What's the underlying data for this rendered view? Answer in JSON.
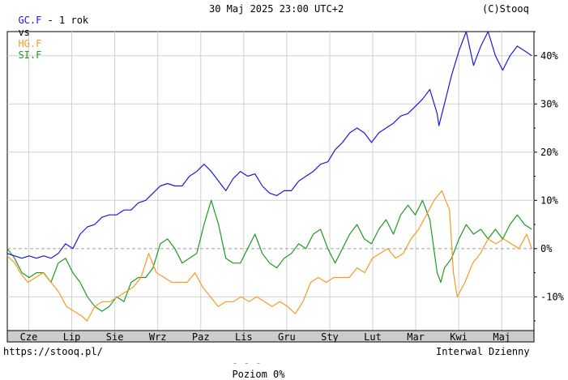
{
  "header": {
    "main_symbol": "GC.F",
    "period": " - 1 rok",
    "vs": "vs",
    "symbol_2": "HG.F",
    "symbol_3": "SI.F",
    "datetime": "30 Maj 2025 23:00 UTC+2",
    "copyright": "(C)Stooq"
  },
  "footer": {
    "url": "https://stooq.pl/",
    "baseline_label": "Poziom 0%",
    "interval": "Interwal Dzienny"
  },
  "colors": {
    "gold": "#1a1adc",
    "copper": "#f59a22",
    "silver": "#1f9a1f",
    "grid": "#d0d0d0",
    "baseline": "#a0a0a0",
    "axis_band": "#cccccc"
  },
  "chart_data": {
    "type": "line",
    "x_tick_labels": [
      "Cze",
      "Lip",
      "Sie",
      "Wrz",
      "Paz",
      "Lis",
      "Gru",
      "Sty",
      "Lut",
      "Mar",
      "Kwi",
      "Maj"
    ],
    "y_tick_labels": [
      "40%",
      "30%",
      "20%",
      "10%",
      "0%",
      "-10%"
    ],
    "y_ticks": [
      40,
      30,
      20,
      10,
      0,
      -10
    ],
    "ylim": [
      -17,
      45
    ],
    "x_range_months": [
      0,
      12.25
    ],
    "baseline": 0,
    "grid": true,
    "series": [
      {
        "name": "GC.F",
        "color": "#1a1adc",
        "points": [
          [
            0,
            -1
          ],
          [
            0.2,
            -1.5
          ],
          [
            0.4,
            -2
          ],
          [
            0.6,
            -1.5
          ],
          [
            0.8,
            -2
          ],
          [
            1.0,
            -1.5
          ],
          [
            1.2,
            -2
          ],
          [
            1.4,
            -1
          ],
          [
            1.6,
            1
          ],
          [
            1.8,
            0
          ],
          [
            2.0,
            3
          ],
          [
            2.2,
            4.5
          ],
          [
            2.4,
            5
          ],
          [
            2.6,
            6.5
          ],
          [
            2.8,
            7
          ],
          [
            3.0,
            7
          ],
          [
            3.2,
            8
          ],
          [
            3.4,
            8
          ],
          [
            3.6,
            9.5
          ],
          [
            3.8,
            10
          ],
          [
            4.0,
            11.5
          ],
          [
            4.2,
            13
          ],
          [
            4.4,
            13.5
          ],
          [
            4.6,
            13
          ],
          [
            4.8,
            13
          ],
          [
            5.0,
            15
          ],
          [
            5.2,
            16
          ],
          [
            5.4,
            17.5
          ],
          [
            5.6,
            16
          ],
          [
            5.8,
            14
          ],
          [
            6.0,
            12
          ],
          [
            6.2,
            14.5
          ],
          [
            6.4,
            16
          ],
          [
            6.6,
            15
          ],
          [
            6.8,
            15.5
          ],
          [
            7.0,
            13
          ],
          [
            7.2,
            11.5
          ],
          [
            7.4,
            11
          ],
          [
            7.6,
            12
          ],
          [
            7.8,
            12
          ],
          [
            8.0,
            14
          ],
          [
            8.2,
            15
          ],
          [
            8.4,
            16
          ],
          [
            8.6,
            17.5
          ],
          [
            8.8,
            18
          ],
          [
            9.0,
            20.5
          ],
          [
            9.2,
            22
          ],
          [
            9.4,
            24
          ],
          [
            9.6,
            25
          ],
          [
            9.8,
            24
          ],
          [
            10.0,
            22
          ],
          [
            10.2,
            24
          ],
          [
            10.4,
            25
          ],
          [
            10.6,
            26
          ],
          [
            10.8,
            27.5
          ],
          [
            11.0,
            28
          ],
          [
            11.2,
            29.5
          ],
          [
            11.4,
            31
          ],
          [
            11.6,
            33
          ],
          [
            11.8,
            28
          ],
          [
            11.85,
            25.5
          ],
          [
            12.0,
            30
          ],
          [
            12.2,
            36
          ],
          [
            12.4,
            41
          ],
          [
            12.6,
            45
          ],
          [
            12.8,
            38
          ],
          [
            13.0,
            42
          ],
          [
            13.2,
            45
          ],
          [
            13.4,
            40
          ],
          [
            13.6,
            37
          ],
          [
            13.8,
            40
          ],
          [
            14.0,
            42
          ],
          [
            14.2,
            41
          ],
          [
            14.4,
            40
          ]
        ]
      },
      {
        "name": "HG.F",
        "color": "#f59a22",
        "points": [
          [
            0,
            -1.5
          ],
          [
            0.3,
            -3
          ],
          [
            0.5,
            -5
          ],
          [
            0.8,
            -7
          ],
          [
            1.1,
            -6
          ],
          [
            1.4,
            -5
          ],
          [
            1.7,
            -7
          ],
          [
            2.0,
            -9
          ],
          [
            2.3,
            -12
          ],
          [
            2.6,
            -13
          ],
          [
            2.9,
            -14
          ],
          [
            3.1,
            -15
          ],
          [
            3.4,
            -12
          ],
          [
            3.7,
            -11
          ],
          [
            4.0,
            -11
          ],
          [
            4.3,
            -10
          ],
          [
            4.6,
            -9
          ],
          [
            4.9,
            -8
          ],
          [
            5.2,
            -6
          ],
          [
            5.5,
            -1
          ],
          [
            5.8,
            -5
          ],
          [
            6.1,
            -6
          ],
          [
            6.4,
            -7
          ],
          [
            6.7,
            -7
          ],
          [
            7.0,
            -7
          ],
          [
            7.3,
            -5
          ],
          [
            7.6,
            -8
          ],
          [
            7.9,
            -10
          ],
          [
            8.2,
            -12
          ],
          [
            8.5,
            -11
          ],
          [
            8.8,
            -11
          ],
          [
            9.1,
            -10
          ],
          [
            9.4,
            -11
          ],
          [
            9.7,
            -10
          ],
          [
            10.0,
            -11
          ],
          [
            10.3,
            -12
          ],
          [
            10.6,
            -11
          ],
          [
            10.9,
            -12
          ],
          [
            11.2,
            -13.5
          ],
          [
            11.5,
            -11
          ],
          [
            11.8,
            -7
          ],
          [
            12.1,
            -6
          ],
          [
            12.4,
            -7
          ],
          [
            12.7,
            -6
          ],
          [
            13.0,
            -6
          ],
          [
            13.3,
            -6
          ],
          [
            13.6,
            -4
          ],
          [
            13.9,
            -5
          ],
          [
            14.2,
            -2
          ],
          [
            14.5,
            -1
          ],
          [
            14.8,
            0
          ],
          [
            15.1,
            -2
          ],
          [
            15.4,
            -1
          ],
          [
            15.7,
            2
          ],
          [
            16.0,
            4
          ],
          [
            16.3,
            7
          ],
          [
            16.6,
            10
          ],
          [
            16.9,
            12
          ],
          [
            17.2,
            8
          ],
          [
            17.35,
            -5
          ],
          [
            17.5,
            -10
          ],
          [
            17.8,
            -7
          ],
          [
            18.1,
            -3
          ],
          [
            18.4,
            -1
          ],
          [
            18.7,
            2
          ],
          [
            19.0,
            1
          ],
          [
            19.3,
            2
          ],
          [
            19.6,
            1
          ],
          [
            19.9,
            0
          ],
          [
            20.2,
            3
          ],
          [
            20.4,
            0
          ]
        ]
      },
      {
        "name": "SI.F",
        "color": "#1f9a1f",
        "points": [
          [
            0,
            0
          ],
          [
            0.2,
            -2
          ],
          [
            0.4,
            -5
          ],
          [
            0.6,
            -6
          ],
          [
            0.8,
            -5
          ],
          [
            1.0,
            -5
          ],
          [
            1.2,
            -7
          ],
          [
            1.4,
            -3
          ],
          [
            1.6,
            -2
          ],
          [
            1.8,
            -5
          ],
          [
            2.0,
            -7
          ],
          [
            2.2,
            -10
          ],
          [
            2.4,
            -12
          ],
          [
            2.6,
            -13
          ],
          [
            2.8,
            -12
          ],
          [
            3.0,
            -10
          ],
          [
            3.2,
            -11
          ],
          [
            3.4,
            -7
          ],
          [
            3.6,
            -6
          ],
          [
            3.8,
            -6
          ],
          [
            4.0,
            -4
          ],
          [
            4.2,
            1
          ],
          [
            4.4,
            2
          ],
          [
            4.6,
            0
          ],
          [
            4.8,
            -3
          ],
          [
            5.0,
            -2
          ],
          [
            5.2,
            -1
          ],
          [
            5.4,
            5
          ],
          [
            5.6,
            10
          ],
          [
            5.8,
            5
          ],
          [
            6.0,
            -2
          ],
          [
            6.2,
            -3
          ],
          [
            6.4,
            -3
          ],
          [
            6.6,
            0
          ],
          [
            6.8,
            3
          ],
          [
            7.0,
            -1
          ],
          [
            7.2,
            -3
          ],
          [
            7.4,
            -4
          ],
          [
            7.6,
            -2
          ],
          [
            7.8,
            -1
          ],
          [
            8.0,
            1
          ],
          [
            8.2,
            0
          ],
          [
            8.4,
            3
          ],
          [
            8.6,
            4
          ],
          [
            8.8,
            0
          ],
          [
            9.0,
            -3
          ],
          [
            9.2,
            0
          ],
          [
            9.4,
            3
          ],
          [
            9.6,
            5
          ],
          [
            9.8,
            2
          ],
          [
            10.0,
            1
          ],
          [
            10.2,
            4
          ],
          [
            10.4,
            6
          ],
          [
            10.6,
            3
          ],
          [
            10.8,
            7
          ],
          [
            11.0,
            9
          ],
          [
            11.2,
            7
          ],
          [
            11.4,
            10
          ],
          [
            11.6,
            6
          ],
          [
            11.8,
            -5
          ],
          [
            11.9,
            -7
          ],
          [
            12.0,
            -4
          ],
          [
            12.2,
            -2
          ],
          [
            12.4,
            2
          ],
          [
            12.6,
            5
          ],
          [
            12.8,
            3
          ],
          [
            13.0,
            4
          ],
          [
            13.2,
            2
          ],
          [
            13.4,
            4
          ],
          [
            13.6,
            2
          ],
          [
            13.8,
            5
          ],
          [
            14.0,
            7
          ],
          [
            14.2,
            5
          ],
          [
            14.4,
            4
          ]
        ]
      }
    ]
  }
}
